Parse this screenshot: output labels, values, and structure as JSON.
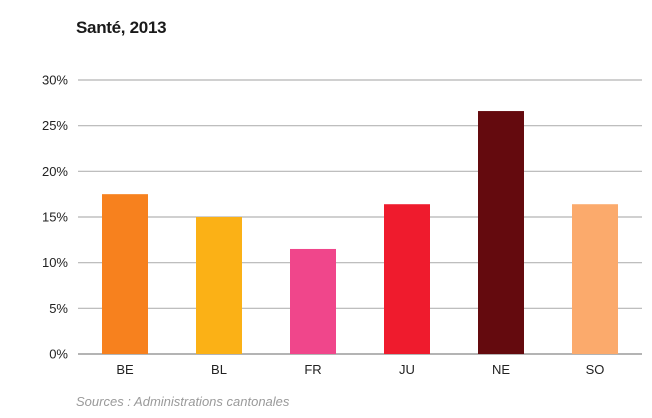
{
  "chart_data": {
    "type": "bar",
    "title": "Santé, 2013",
    "categories": [
      "BE",
      "BL",
      "FR",
      "JU",
      "NE",
      "SO"
    ],
    "values": [
      17.5,
      15.0,
      11.5,
      16.4,
      26.6,
      16.4
    ],
    "colors": [
      "#f7811e",
      "#fbb116",
      "#f0468b",
      "#ef1b2d",
      "#640a0e",
      "#fbaa6c"
    ],
    "ylim": [
      0,
      30
    ],
    "yticks": [
      0,
      5,
      10,
      15,
      20,
      25,
      30
    ],
    "ytick_labels": [
      "0%",
      "5%",
      "10%",
      "15%",
      "20%",
      "25%",
      "30%"
    ],
    "xlabel": "",
    "ylabel": "",
    "grid": true,
    "source": "Sources : Administrations cantonales"
  }
}
